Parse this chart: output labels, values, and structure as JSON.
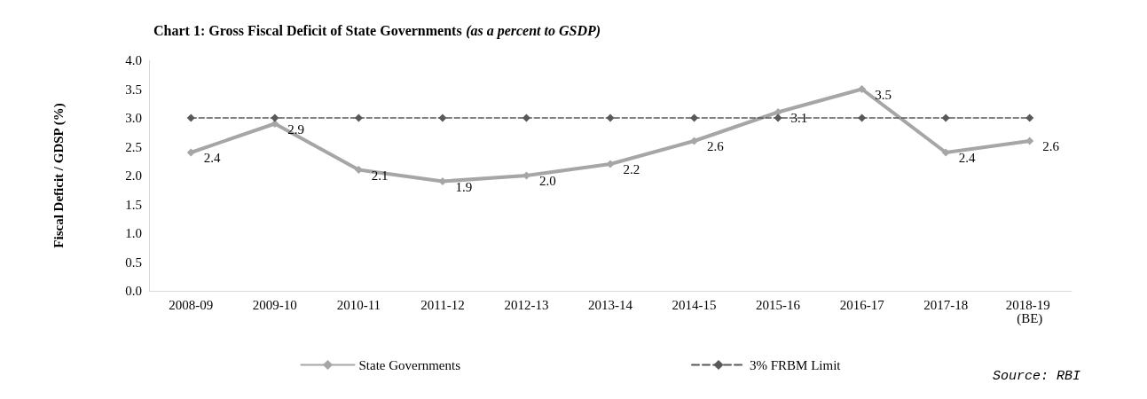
{
  "chart_data": {
    "type": "line",
    "title": "Chart 1: Gross Fiscal Deficit of State Governments",
    "subtitle": "(as a percent to GSDP)",
    "ylabel": "Fiscal Deficit / GDSP (%)",
    "categories": [
      "2008-09",
      "2009-10",
      "2010-11",
      "2011-12",
      "2012-13",
      "2013-14",
      "2014-15",
      "2015-16",
      "2016-17",
      "2017-18",
      "2018-19 (BE)"
    ],
    "series": [
      {
        "name": "State Governments",
        "color": "#a6a6a6",
        "values": [
          2.4,
          2.9,
          2.1,
          1.9,
          2.0,
          2.2,
          2.6,
          3.1,
          3.5,
          2.4,
          2.6
        ],
        "value_labels": [
          "2.4",
          "2.9",
          "2.1",
          "1.9",
          "2.0",
          "2.2",
          "2.6",
          "3.1",
          "3.5",
          "2.4",
          "2.6"
        ],
        "line_style": "solid",
        "marker": "diamond"
      },
      {
        "name": "3% FRBM Limit",
        "color": "#595959",
        "values": [
          3,
          3,
          3,
          3,
          3,
          3,
          3,
          3,
          3,
          3,
          3
        ],
        "line_style": "dashed",
        "marker": "diamond"
      }
    ],
    "ylim": [
      0,
      4
    ],
    "yticks": [
      {
        "value": 0,
        "label": "0.0"
      },
      {
        "value": 0.5,
        "label": "0.5"
      },
      {
        "value": 1,
        "label": "1.0"
      },
      {
        "value": 1.5,
        "label": "1.5"
      },
      {
        "value": 2,
        "label": "2.0"
      },
      {
        "value": 2.5,
        "label": "2.5"
      },
      {
        "value": 3,
        "label": "3.0"
      },
      {
        "value": 3.5,
        "label": "3.5"
      },
      {
        "value": 4,
        "label": "4.0"
      }
    ],
    "grid": false,
    "legend": "bottom",
    "annotations": [
      "Source: RBI"
    ]
  }
}
